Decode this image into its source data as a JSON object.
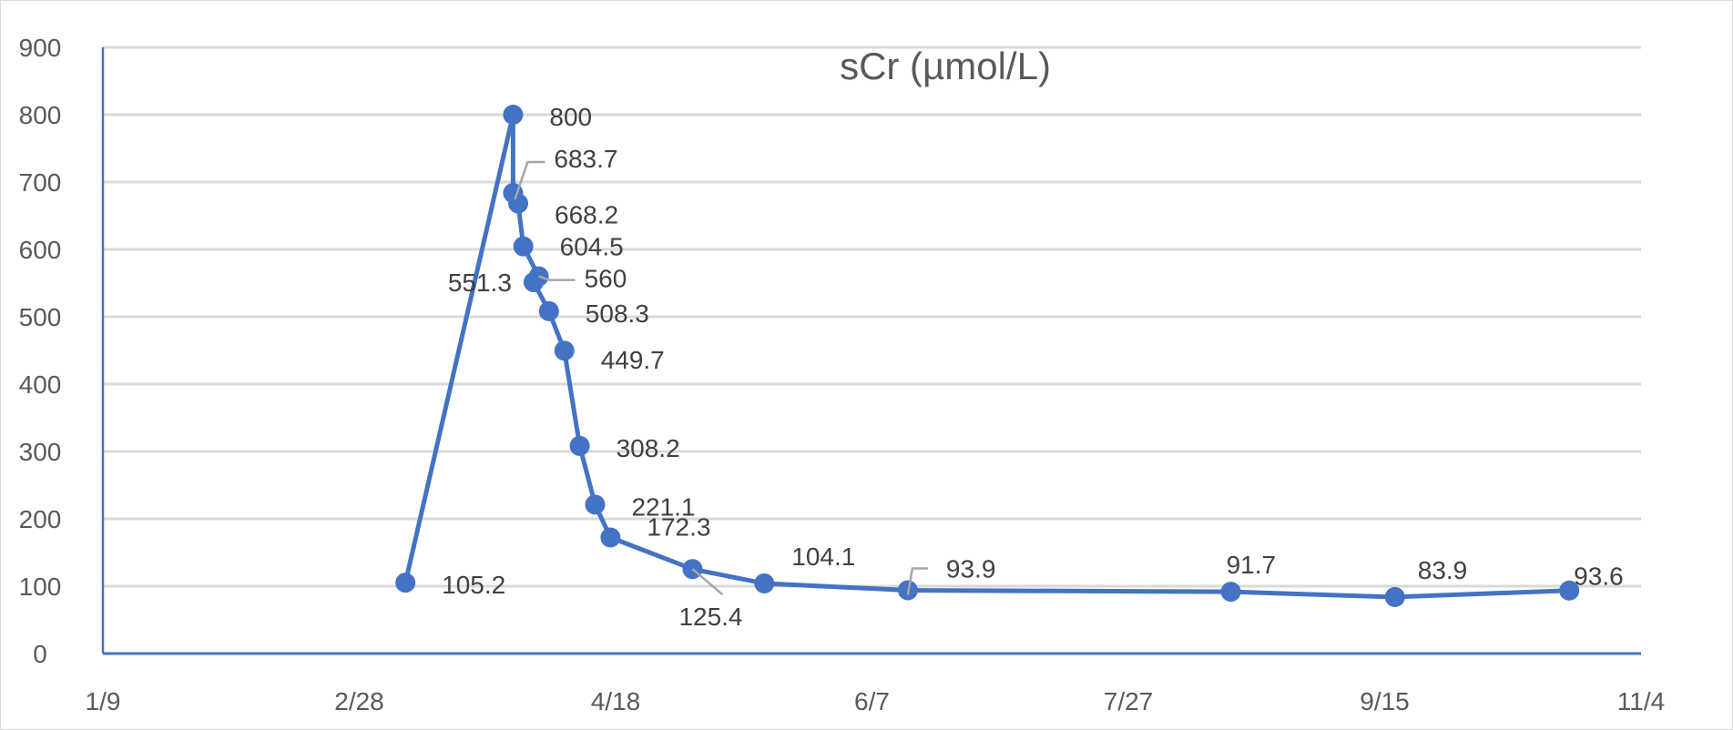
{
  "chart_data": {
    "type": "line",
    "title": "sCr (µmol/L)",
    "xlabel": "",
    "ylabel": "",
    "ylim": [
      0,
      900
    ],
    "yticks": [
      0,
      100,
      200,
      300,
      400,
      500,
      600,
      700,
      800,
      900
    ],
    "xlim": [
      "2020-01-09",
      "2020-11-04"
    ],
    "xticks": [
      {
        "date": "2020-01-09",
        "label": "1/9"
      },
      {
        "date": "2020-02-28",
        "label": "2/28"
      },
      {
        "date": "2020-04-18",
        "label": "4/18"
      },
      {
        "date": "2020-06-07",
        "label": "6/7"
      },
      {
        "date": "2020-07-27",
        "label": "7/27"
      },
      {
        "date": "2020-09-15",
        "label": "9/15"
      },
      {
        "date": "2020-11-04",
        "label": "11/4"
      }
    ],
    "grid": true,
    "legend": "none",
    "series": [
      {
        "name": "sCr",
        "color": "#4472C4",
        "points": [
          {
            "x": "2020-03-08",
            "y": 105.2,
            "label": "105.2"
          },
          {
            "x": "2020-03-29",
            "y": 800,
            "label": "800"
          },
          {
            "x": "2020-03-29",
            "y": 683.7,
            "label": "683.7"
          },
          {
            "x": "2020-03-30",
            "y": 668.2,
            "label": "668.2"
          },
          {
            "x": "2020-03-31",
            "y": 604.5,
            "label": "604.5"
          },
          {
            "x": "2020-04-03",
            "y": 560,
            "label": "560"
          },
          {
            "x": "2020-04-02",
            "y": 551.3,
            "label": "551.3"
          },
          {
            "x": "2020-04-05",
            "y": 508.3,
            "label": "508.3"
          },
          {
            "x": "2020-04-08",
            "y": 449.7,
            "label": "449.7"
          },
          {
            "x": "2020-04-11",
            "y": 308.2,
            "label": "308.2"
          },
          {
            "x": "2020-04-14",
            "y": 221.1,
            "label": "221.1"
          },
          {
            "x": "2020-04-17",
            "y": 172.3,
            "label": "172.3"
          },
          {
            "x": "2020-05-03",
            "y": 125.4,
            "label": "125.4"
          },
          {
            "x": "2020-05-17",
            "y": 104.1,
            "label": "104.1"
          },
          {
            "x": "2020-06-14",
            "y": 93.9,
            "label": "93.9"
          },
          {
            "x": "2020-08-16",
            "y": 91.7,
            "label": "91.7"
          },
          {
            "x": "2020-09-17",
            "y": 83.9,
            "label": "83.9"
          },
          {
            "x": "2020-10-21",
            "y": 93.6,
            "label": "93.6"
          }
        ]
      }
    ]
  }
}
